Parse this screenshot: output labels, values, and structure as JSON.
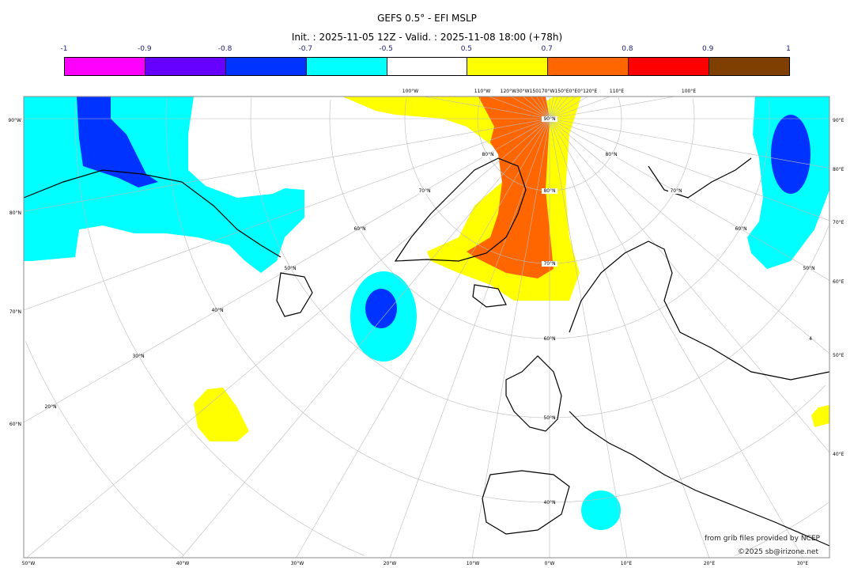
{
  "title": "GEFS 0.5° - EFI MSLP",
  "subtitle": "Init. : 2025-11-05 12Z - Valid. : 2025-11-08 18:00 (+78h)",
  "colorbar": {
    "ticks": [
      "-1",
      "-0.9",
      "-0.8",
      "-0.7",
      "-0.5",
      "0.5",
      "0.7",
      "0.8",
      "0.9",
      "1"
    ],
    "colors": [
      "#ff00ff",
      "#6600ff",
      "#0033ff",
      "#00ffff",
      "#ffffff",
      "#ffff00",
      "#ff6600",
      "#ff0000",
      "#7f3f00"
    ]
  },
  "axes": {
    "left": [
      "90°W",
      "80°N",
      "70°N",
      "60°N"
    ],
    "right": [
      "90°E",
      "80°E",
      "70°E",
      "60°E",
      "50°E",
      "40°E"
    ],
    "bottom": [
      "50°W",
      "40°W",
      "30°W",
      "20°W",
      "10°W",
      "0°W",
      "10°E",
      "20°E",
      "30°E"
    ],
    "top": [
      "100°W",
      "110°W",
      "120°W30°W150170°W150°E0°E0°120°E",
      "110°E",
      "100°E"
    ],
    "interior": [
      "90°N",
      "80°N",
      "80°N",
      "80°N",
      "70°N",
      "70°N",
      "70°N",
      "60°N",
      "60°N",
      "60°N",
      "50°N",
      "50°N",
      "50°N",
      "40°N",
      "40°N",
      "30°N",
      "20°N",
      "4"
    ]
  },
  "credits": {
    "source": "from grib files provided by NCEP",
    "copyright": "©2025 sb@irizone.net"
  }
}
